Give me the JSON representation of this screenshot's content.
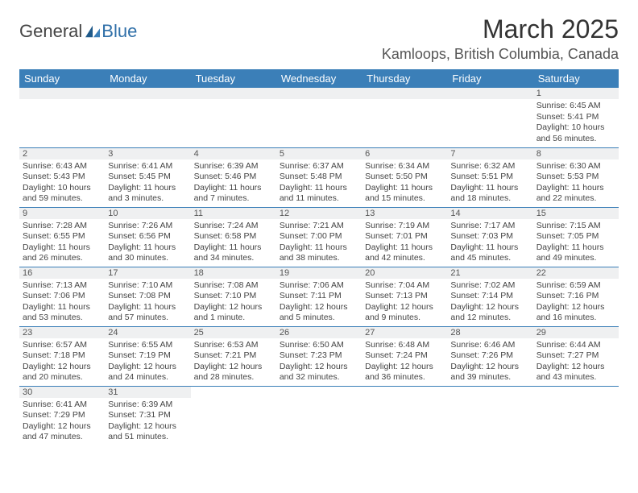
{
  "logo": {
    "text1": "General",
    "text2": "Blue"
  },
  "title": "March 2025",
  "location": "Kamloops, British Columbia, Canada",
  "colors": {
    "header_bg": "#3b7fb8",
    "header_fg": "#ffffff",
    "daynum_bg": "#eff0f1",
    "rule": "#3b7fb8",
    "logo_blue": "#2f6fa8",
    "text": "#444444"
  },
  "fonts": {
    "title_size": 32,
    "location_size": 18,
    "weekday_size": 13,
    "body_size": 10.5
  },
  "weekdays": [
    "Sunday",
    "Monday",
    "Tuesday",
    "Wednesday",
    "Thursday",
    "Friday",
    "Saturday"
  ],
  "weeks": [
    [
      null,
      null,
      null,
      null,
      null,
      null,
      {
        "n": "1",
        "sunrise": "6:45 AM",
        "sunset": "5:41 PM",
        "day_h": "10",
        "day_m": "56"
      }
    ],
    [
      {
        "n": "2",
        "sunrise": "6:43 AM",
        "sunset": "5:43 PM",
        "day_h": "10",
        "day_m": "59"
      },
      {
        "n": "3",
        "sunrise": "6:41 AM",
        "sunset": "5:45 PM",
        "day_h": "11",
        "day_m": "3"
      },
      {
        "n": "4",
        "sunrise": "6:39 AM",
        "sunset": "5:46 PM",
        "day_h": "11",
        "day_m": "7"
      },
      {
        "n": "5",
        "sunrise": "6:37 AM",
        "sunset": "5:48 PM",
        "day_h": "11",
        "day_m": "11"
      },
      {
        "n": "6",
        "sunrise": "6:34 AM",
        "sunset": "5:50 PM",
        "day_h": "11",
        "day_m": "15"
      },
      {
        "n": "7",
        "sunrise": "6:32 AM",
        "sunset": "5:51 PM",
        "day_h": "11",
        "day_m": "18"
      },
      {
        "n": "8",
        "sunrise": "6:30 AM",
        "sunset": "5:53 PM",
        "day_h": "11",
        "day_m": "22"
      }
    ],
    [
      {
        "n": "9",
        "sunrise": "7:28 AM",
        "sunset": "6:55 PM",
        "day_h": "11",
        "day_m": "26"
      },
      {
        "n": "10",
        "sunrise": "7:26 AM",
        "sunset": "6:56 PM",
        "day_h": "11",
        "day_m": "30"
      },
      {
        "n": "11",
        "sunrise": "7:24 AM",
        "sunset": "6:58 PM",
        "day_h": "11",
        "day_m": "34"
      },
      {
        "n": "12",
        "sunrise": "7:21 AM",
        "sunset": "7:00 PM",
        "day_h": "11",
        "day_m": "38"
      },
      {
        "n": "13",
        "sunrise": "7:19 AM",
        "sunset": "7:01 PM",
        "day_h": "11",
        "day_m": "42"
      },
      {
        "n": "14",
        "sunrise": "7:17 AM",
        "sunset": "7:03 PM",
        "day_h": "11",
        "day_m": "45"
      },
      {
        "n": "15",
        "sunrise": "7:15 AM",
        "sunset": "7:05 PM",
        "day_h": "11",
        "day_m": "49"
      }
    ],
    [
      {
        "n": "16",
        "sunrise": "7:13 AM",
        "sunset": "7:06 PM",
        "day_h": "11",
        "day_m": "53"
      },
      {
        "n": "17",
        "sunrise": "7:10 AM",
        "sunset": "7:08 PM",
        "day_h": "11",
        "day_m": "57"
      },
      {
        "n": "18",
        "sunrise": "7:08 AM",
        "sunset": "7:10 PM",
        "day_h": "12",
        "day_m": "1",
        "mlabel": "minute"
      },
      {
        "n": "19",
        "sunrise": "7:06 AM",
        "sunset": "7:11 PM",
        "day_h": "12",
        "day_m": "5"
      },
      {
        "n": "20",
        "sunrise": "7:04 AM",
        "sunset": "7:13 PM",
        "day_h": "12",
        "day_m": "9"
      },
      {
        "n": "21",
        "sunrise": "7:02 AM",
        "sunset": "7:14 PM",
        "day_h": "12",
        "day_m": "12"
      },
      {
        "n": "22",
        "sunrise": "6:59 AM",
        "sunset": "7:16 PM",
        "day_h": "12",
        "day_m": "16"
      }
    ],
    [
      {
        "n": "23",
        "sunrise": "6:57 AM",
        "sunset": "7:18 PM",
        "day_h": "12",
        "day_m": "20"
      },
      {
        "n": "24",
        "sunrise": "6:55 AM",
        "sunset": "7:19 PM",
        "day_h": "12",
        "day_m": "24"
      },
      {
        "n": "25",
        "sunrise": "6:53 AM",
        "sunset": "7:21 PM",
        "day_h": "12",
        "day_m": "28"
      },
      {
        "n": "26",
        "sunrise": "6:50 AM",
        "sunset": "7:23 PM",
        "day_h": "12",
        "day_m": "32"
      },
      {
        "n": "27",
        "sunrise": "6:48 AM",
        "sunset": "7:24 PM",
        "day_h": "12",
        "day_m": "36"
      },
      {
        "n": "28",
        "sunrise": "6:46 AM",
        "sunset": "7:26 PM",
        "day_h": "12",
        "day_m": "39"
      },
      {
        "n": "29",
        "sunrise": "6:44 AM",
        "sunset": "7:27 PM",
        "day_h": "12",
        "day_m": "43"
      }
    ],
    [
      {
        "n": "30",
        "sunrise": "6:41 AM",
        "sunset": "7:29 PM",
        "day_h": "12",
        "day_m": "47"
      },
      {
        "n": "31",
        "sunrise": "6:39 AM",
        "sunset": "7:31 PM",
        "day_h": "12",
        "day_m": "51"
      },
      null,
      null,
      null,
      null,
      null
    ]
  ],
  "labels": {
    "sunrise": "Sunrise:",
    "sunset": "Sunset:",
    "daylight_prefix": "Daylight:",
    "hours_word": "hours",
    "and_word": "and",
    "minutes_word": "minutes"
  }
}
